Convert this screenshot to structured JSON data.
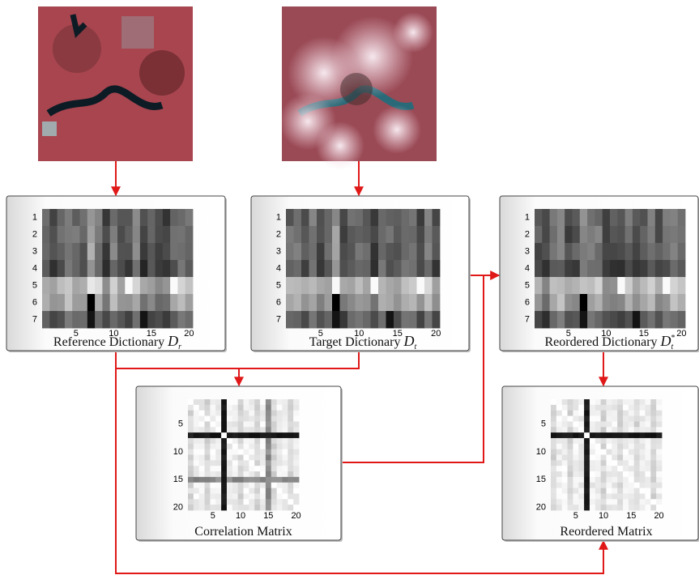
{
  "panels": [
    {
      "caption": "Reference Dictionary",
      "symbol": "D",
      "subscript": "r"
    },
    {
      "caption": "Target Dictionary",
      "symbol": "D",
      "subscript": "t"
    },
    {
      "caption": "Reordered Dictionary",
      "symbol": "D",
      "subscript": "t",
      "superscript": "*"
    },
    {
      "caption": "Correlation Matrix"
    },
    {
      "caption": "Reordered Matrix"
    }
  ],
  "dictionary_axes": {
    "y_ticks": [
      "1",
      "2",
      "3",
      "4",
      "5",
      "6",
      "7"
    ],
    "x_ticks": [
      "5",
      "10",
      "15",
      "20"
    ]
  },
  "matrix_axes": {
    "y_ticks": [
      "5",
      "10",
      "15",
      "20"
    ],
    "x_ticks": [
      "5",
      "10",
      "15",
      "20"
    ]
  }
}
